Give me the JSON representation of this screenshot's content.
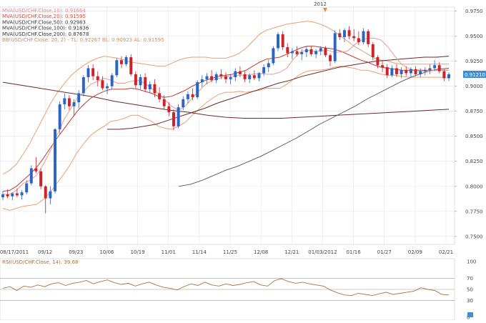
{
  "window": {
    "top_marker_label": "2012"
  },
  "main_legend": [
    {
      "text": "MVA(USD/CHF.Close,10): 0.91664",
      "color": "#e08a8a"
    },
    {
      "text": "MVA(USD/CHF.Close,20): 0.91595",
      "color": "#d24a3a"
    },
    {
      "text": "MVA(USD/CHF.Close,50): 0.92983",
      "color": "#333333"
    },
    {
      "text": "MVA(USD/CHF.Close,100): 0.91836",
      "color": "#333333"
    },
    {
      "text": "MVA(USD/CHF.Close,200): 0.87678",
      "color": "#333333"
    },
    {
      "text": "BB(USD/CHF.Close, 20, 2) - TL: 0.92267  BL: 0.90923  AL: 0.91595",
      "color": "#e0874a"
    }
  ],
  "price_label": "0.91210",
  "rsi_legend": "RSI(USD/CHF.Close, 14): 39.68",
  "colors": {
    "up": "#2a64c8",
    "down": "#d0202a",
    "bb": "#e8a070",
    "ma_short": "#e89c8c",
    "ma_red": "#c03a2a",
    "ma_dark": "#555555",
    "ma_200": "#6a2a2a",
    "rsi": "#b07040",
    "price_box": "#3a8fd8",
    "marker": "#f08a2a"
  },
  "chart_data": {
    "type": "candlestick",
    "x_tick_labels": [
      "08/17/2011",
      "09/12",
      "09/23",
      "10/06",
      "10/19",
      "11/01",
      "11/14",
      "11/25",
      "12/08",
      "12/21",
      "01/03/2012",
      "01/16",
      "01/27",
      "02/09",
      "02/21"
    ],
    "y_tick_labels": [
      "0.7500",
      "0.7750",
      "0.8000",
      "0.8250",
      "0.8500",
      "0.8750",
      "0.9000",
      "0.9250",
      "0.9500",
      "0.9750"
    ],
    "ylim": [
      0.742,
      0.979
    ],
    "candles": [
      [
        0.789,
        0.795,
        0.786,
        0.792
      ],
      [
        0.792,
        0.797,
        0.788,
        0.79
      ],
      [
        0.79,
        0.794,
        0.786,
        0.793
      ],
      [
        0.793,
        0.798,
        0.789,
        0.791
      ],
      [
        0.791,
        0.796,
        0.787,
        0.794
      ],
      [
        0.794,
        0.806,
        0.792,
        0.803
      ],
      [
        0.803,
        0.821,
        0.801,
        0.818
      ],
      [
        0.818,
        0.829,
        0.813,
        0.815
      ],
      [
        0.815,
        0.818,
        0.797,
        0.8
      ],
      [
        0.8,
        0.801,
        0.773,
        0.788
      ],
      [
        0.788,
        0.8,
        0.782,
        0.795
      ],
      [
        0.795,
        0.858,
        0.793,
        0.857
      ],
      [
        0.857,
        0.885,
        0.852,
        0.882
      ],
      [
        0.882,
        0.893,
        0.877,
        0.888
      ],
      [
        0.888,
        0.891,
        0.876,
        0.88
      ],
      [
        0.88,
        0.887,
        0.87,
        0.884
      ],
      [
        0.884,
        0.896,
        0.878,
        0.893
      ],
      [
        0.893,
        0.911,
        0.89,
        0.909
      ],
      [
        0.909,
        0.921,
        0.904,
        0.918
      ],
      [
        0.918,
        0.922,
        0.906,
        0.91
      ],
      [
        0.91,
        0.915,
        0.9,
        0.906
      ],
      [
        0.906,
        0.91,
        0.896,
        0.898
      ],
      [
        0.898,
        0.903,
        0.892,
        0.9
      ],
      [
        0.9,
        0.913,
        0.897,
        0.911
      ],
      [
        0.911,
        0.928,
        0.909,
        0.926
      ],
      [
        0.926,
        0.93,
        0.918,
        0.922
      ],
      [
        0.922,
        0.931,
        0.92,
        0.929
      ],
      [
        0.929,
        0.932,
        0.91,
        0.912
      ],
      [
        0.912,
        0.915,
        0.898,
        0.901
      ],
      [
        0.901,
        0.912,
        0.897,
        0.909
      ],
      [
        0.909,
        0.913,
        0.894,
        0.897
      ],
      [
        0.897,
        0.905,
        0.893,
        0.902
      ],
      [
        0.902,
        0.907,
        0.889,
        0.893
      ],
      [
        0.893,
        0.899,
        0.884,
        0.887
      ],
      [
        0.887,
        0.891,
        0.877,
        0.88
      ],
      [
        0.88,
        0.884,
        0.87,
        0.874
      ],
      [
        0.874,
        0.877,
        0.856,
        0.86
      ],
      [
        0.86,
        0.882,
        0.858,
        0.879
      ],
      [
        0.879,
        0.89,
        0.876,
        0.887
      ],
      [
        0.887,
        0.895,
        0.883,
        0.892
      ],
      [
        0.892,
        0.898,
        0.886,
        0.889
      ],
      [
        0.889,
        0.906,
        0.887,
        0.904
      ],
      [
        0.904,
        0.911,
        0.899,
        0.907
      ],
      [
        0.907,
        0.913,
        0.902,
        0.91
      ],
      [
        0.91,
        0.916,
        0.904,
        0.906
      ],
      [
        0.906,
        0.914,
        0.903,
        0.912
      ],
      [
        0.912,
        0.917,
        0.907,
        0.91
      ],
      [
        0.91,
        0.914,
        0.903,
        0.907
      ],
      [
        0.907,
        0.912,
        0.902,
        0.909
      ],
      [
        0.909,
        0.918,
        0.905,
        0.915
      ],
      [
        0.915,
        0.92,
        0.909,
        0.912
      ],
      [
        0.912,
        0.915,
        0.904,
        0.907
      ],
      [
        0.907,
        0.913,
        0.903,
        0.911
      ],
      [
        0.911,
        0.916,
        0.906,
        0.908
      ],
      [
        0.908,
        0.914,
        0.905,
        0.913
      ],
      [
        0.913,
        0.922,
        0.91,
        0.919
      ],
      [
        0.919,
        0.926,
        0.914,
        0.923
      ],
      [
        0.923,
        0.94,
        0.921,
        0.938
      ],
      [
        0.938,
        0.954,
        0.935,
        0.952
      ],
      [
        0.952,
        0.955,
        0.936,
        0.939
      ],
      [
        0.939,
        0.943,
        0.929,
        0.933
      ],
      [
        0.933,
        0.938,
        0.927,
        0.935
      ],
      [
        0.935,
        0.94,
        0.93,
        0.932
      ],
      [
        0.932,
        0.937,
        0.926,
        0.934
      ],
      [
        0.934,
        0.94,
        0.929,
        0.937
      ],
      [
        0.937,
        0.94,
        0.93,
        0.932
      ],
      [
        0.932,
        0.937,
        0.928,
        0.935
      ],
      [
        0.935,
        0.94,
        0.931,
        0.938
      ],
      [
        0.938,
        0.94,
        0.929,
        0.931
      ],
      [
        0.931,
        0.933,
        0.92,
        0.925
      ],
      [
        0.925,
        0.956,
        0.923,
        0.953
      ],
      [
        0.953,
        0.957,
        0.946,
        0.949
      ],
      [
        0.949,
        0.958,
        0.944,
        0.956
      ],
      [
        0.956,
        0.96,
        0.947,
        0.95
      ],
      [
        0.95,
        0.957,
        0.945,
        0.948
      ],
      [
        0.948,
        0.955,
        0.941,
        0.944
      ],
      [
        0.944,
        0.958,
        0.942,
        0.955
      ],
      [
        0.955,
        0.957,
        0.939,
        0.942
      ],
      [
        0.942,
        0.944,
        0.926,
        0.929
      ],
      [
        0.929,
        0.931,
        0.918,
        0.921
      ],
      [
        0.921,
        0.925,
        0.914,
        0.919
      ],
      [
        0.919,
        0.922,
        0.908,
        0.911
      ],
      [
        0.911,
        0.921,
        0.909,
        0.918
      ],
      [
        0.918,
        0.922,
        0.909,
        0.912
      ],
      [
        0.912,
        0.919,
        0.908,
        0.916
      ],
      [
        0.916,
        0.92,
        0.91,
        0.913
      ],
      [
        0.913,
        0.919,
        0.909,
        0.917
      ],
      [
        0.917,
        0.92,
        0.91,
        0.912
      ],
      [
        0.912,
        0.918,
        0.909,
        0.915
      ],
      [
        0.915,
        0.919,
        0.911,
        0.916
      ],
      [
        0.916,
        0.922,
        0.912,
        0.918
      ],
      [
        0.918,
        0.926,
        0.915,
        0.921
      ],
      [
        0.921,
        0.924,
        0.913,
        0.915
      ],
      [
        0.915,
        0.917,
        0.905,
        0.908
      ],
      [
        0.908,
        0.914,
        0.905,
        0.912
      ]
    ],
    "ma10": [
      0.792,
      0.792,
      0.796,
      0.803,
      0.806,
      0.811,
      0.822,
      0.835,
      0.851,
      0.866,
      0.877,
      0.888,
      0.895,
      0.902,
      0.905,
      0.908,
      0.906,
      0.903,
      0.903,
      0.905,
      0.906,
      0.903,
      0.898,
      0.893,
      0.886,
      0.88,
      0.876,
      0.88,
      0.888,
      0.895,
      0.902,
      0.906,
      0.908,
      0.91,
      0.91,
      0.911,
      0.911,
      0.912,
      0.913,
      0.912,
      0.912,
      0.914,
      0.918,
      0.927,
      0.934,
      0.936,
      0.935,
      0.935,
      0.936,
      0.934,
      0.934,
      0.935,
      0.941,
      0.946,
      0.948,
      0.948,
      0.946,
      0.939,
      0.93,
      0.922,
      0.918,
      0.916,
      0.915,
      0.915,
      0.916,
      0.916,
      0.916
    ],
    "ma20": [
      0.795,
      0.796,
      0.8,
      0.806,
      0.812,
      0.819,
      0.828,
      0.838,
      0.848,
      0.857,
      0.866,
      0.875,
      0.882,
      0.888,
      0.892,
      0.895,
      0.897,
      0.897,
      0.897,
      0.898,
      0.897,
      0.895,
      0.893,
      0.89,
      0.889,
      0.89,
      0.893,
      0.896,
      0.9,
      0.903,
      0.906,
      0.908,
      0.91,
      0.911,
      0.912,
      0.914,
      0.916,
      0.92,
      0.924,
      0.927,
      0.928,
      0.929,
      0.932,
      0.935,
      0.938,
      0.94,
      0.94,
      0.939,
      0.938,
      0.937,
      0.935,
      0.932,
      0.929,
      0.926,
      0.924,
      0.921,
      0.919,
      0.918,
      0.917,
      0.916,
      0.916,
      0.916,
      0.916,
      0.916,
      0.916,
      0.916,
      0.916
    ],
    "bb_upper": [
      0.812,
      0.816,
      0.822,
      0.832,
      0.843,
      0.856,
      0.869,
      0.882,
      0.893,
      0.902,
      0.91,
      0.916,
      0.921,
      0.925,
      0.928,
      0.93,
      0.929,
      0.928,
      0.926,
      0.924,
      0.923,
      0.922,
      0.921,
      0.92,
      0.92,
      0.923,
      0.926,
      0.928,
      0.929,
      0.929,
      0.929,
      0.928,
      0.928,
      0.928,
      0.93,
      0.933,
      0.938,
      0.945,
      0.952,
      0.956,
      0.958,
      0.96,
      0.962,
      0.963,
      0.964,
      0.965,
      0.964,
      0.962,
      0.959,
      0.955,
      0.95,
      0.945,
      0.94,
      0.936,
      0.932,
      0.928,
      0.926,
      0.925,
      0.923,
      0.922,
      0.922,
      0.922,
      0.922,
      0.922,
      0.922,
      0.922,
      0.922
    ],
    "bb_lower": [
      0.778,
      0.776,
      0.778,
      0.78,
      0.781,
      0.782,
      0.787,
      0.794,
      0.803,
      0.812,
      0.822,
      0.834,
      0.843,
      0.851,
      0.856,
      0.86,
      0.865,
      0.866,
      0.868,
      0.871,
      0.871,
      0.868,
      0.865,
      0.86,
      0.858,
      0.857,
      0.86,
      0.864,
      0.871,
      0.877,
      0.883,
      0.888,
      0.892,
      0.894,
      0.894,
      0.895,
      0.894,
      0.895,
      0.896,
      0.898,
      0.898,
      0.898,
      0.902,
      0.907,
      0.912,
      0.915,
      0.916,
      0.916,
      0.917,
      0.919,
      0.92,
      0.919,
      0.918,
      0.916,
      0.916,
      0.914,
      0.912,
      0.911,
      0.911,
      0.91,
      0.909,
      0.909,
      0.909,
      0.909,
      0.909,
      0.909,
      0.909
    ],
    "ma50": [
      0.857,
      0.857,
      0.858,
      0.86,
      0.862,
      0.866,
      0.87,
      0.874,
      0.878,
      0.883,
      0.887,
      0.891,
      0.895,
      0.899,
      0.903,
      0.906,
      0.91,
      0.913,
      0.916,
      0.919,
      0.921,
      0.923,
      0.925,
      0.926,
      0.927,
      0.928,
      0.929,
      0.929,
      0.93
    ],
    "ma100": [
      0.8,
      0.802,
      0.806,
      0.811,
      0.816,
      0.82,
      0.825,
      0.83,
      0.836,
      0.842,
      0.848,
      0.855,
      0.862,
      0.868,
      0.874,
      0.88,
      0.887,
      0.893,
      0.899,
      0.905,
      0.91,
      0.914,
      0.917,
      0.918
    ],
    "ma200": [
      0.904,
      0.901,
      0.898,
      0.895,
      0.892,
      0.889,
      0.885,
      0.882,
      0.879,
      0.876,
      0.874,
      0.871,
      0.869,
      0.868,
      0.868,
      0.868,
      0.869,
      0.87,
      0.871,
      0.872,
      0.873,
      0.874,
      0.875,
      0.876,
      0.877
    ],
    "rsi": {
      "ylim": [
        0,
        100
      ],
      "tick_labels": [
        "100",
        "70",
        "50",
        "30",
        "0"
      ],
      "levels": [
        30,
        50,
        70
      ],
      "values": [
        52,
        55,
        48,
        56,
        54,
        58,
        55,
        60,
        62,
        57,
        61,
        63,
        66,
        60,
        64,
        67,
        62,
        59,
        61,
        56,
        60,
        63,
        58,
        54,
        52,
        49,
        55,
        60,
        57,
        63,
        58,
        56,
        60,
        57,
        59,
        62,
        64,
        58,
        56,
        66,
        69,
        64,
        61,
        63,
        60,
        58,
        56,
        49,
        44,
        40,
        39,
        43,
        41,
        39,
        42,
        45,
        41,
        43,
        45,
        47,
        53,
        50,
        48,
        41,
        40
      ]
    }
  }
}
